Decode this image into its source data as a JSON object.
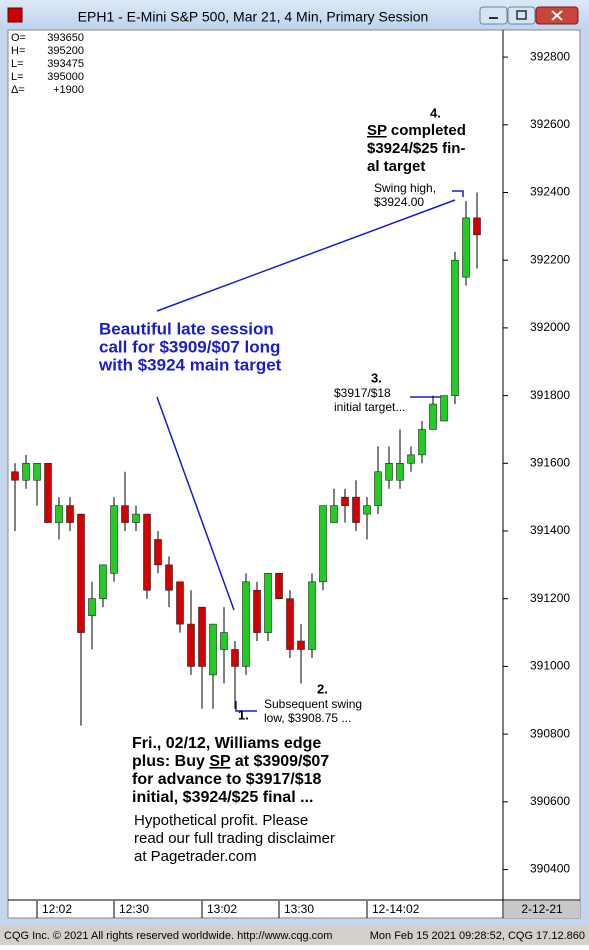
{
  "chart_data": {
    "type": "candlestick",
    "title": "EPH1 - E-Mini S&P 500, Mar 21, 4 Min, Primary Session",
    "info": [
      {
        "label": "O=",
        "value": "393650"
      },
      {
        "label": "H=",
        "value": "395200"
      },
      {
        "label": "L=",
        "value": "393475"
      },
      {
        "label": "L=",
        "value": "395000"
      },
      {
        "label": "Δ=",
        "value": "+1900"
      }
    ],
    "categories": [
      null,
      null,
      "12:02",
      null,
      null,
      null,
      null,
      null,
      null,
      "12:30",
      null,
      null,
      null,
      null,
      null,
      null,
      null,
      "13:02",
      null,
      null,
      null,
      null,
      null,
      null,
      "13:30",
      null,
      null,
      null,
      null,
      null,
      null,
      null,
      "12-14:02",
      null,
      null,
      null,
      null,
      null,
      null,
      null,
      null,
      null,
      null
    ],
    "open": [
      391575,
      391550,
      391550,
      391600,
      391425,
      391475,
      391450,
      391150,
      391200,
      391275,
      391475,
      391425,
      391450,
      391375,
      391300,
      391250,
      391125,
      391175,
      390975,
      391050,
      391050,
      391000,
      391225,
      391100,
      391275,
      391200,
      391075,
      391050,
      391250,
      391425,
      391500,
      391500,
      391450,
      391475,
      391550,
      391550,
      391600,
      391625,
      391700,
      391725,
      391800,
      392150,
      392325
    ],
    "high": [
      391600,
      391625,
      391600,
      391600,
      391500,
      391500,
      391450,
      391250,
      391300,
      391500,
      391575,
      391475,
      391450,
      391400,
      391325,
      391250,
      391225,
      391175,
      391125,
      391175,
      391075,
      391275,
      391250,
      391275,
      391275,
      391225,
      391125,
      391275,
      391475,
      391525,
      391525,
      391550,
      391500,
      391650,
      391650,
      391700,
      391650,
      391725,
      391800,
      391800,
      392225,
      392375,
      392400
    ],
    "low": [
      391400,
      391525,
      391475,
      391425,
      391375,
      391400,
      390825,
      391050,
      391175,
      391250,
      391400,
      391400,
      391200,
      391275,
      391175,
      391100,
      390975,
      390875,
      390875,
      390950,
      390875,
      390975,
      391075,
      391075,
      391200,
      391025,
      390950,
      391025,
      391225,
      391425,
      391425,
      391400,
      391375,
      391450,
      391525,
      391525,
      391575,
      391600,
      391700,
      391725,
      391775,
      392125,
      392175
    ],
    "close": [
      391550,
      391600,
      391600,
      391425,
      391475,
      391425,
      391100,
      391200,
      391300,
      391475,
      391425,
      391450,
      391225,
      391300,
      391225,
      391125,
      391000,
      391000,
      391125,
      391100,
      391000,
      391250,
      391100,
      391275,
      391200,
      391050,
      391050,
      391250,
      391475,
      391475,
      391475,
      391425,
      391475,
      391575,
      391600,
      391600,
      391625,
      391700,
      391775,
      391800,
      392200,
      392325,
      392275
    ],
    "up_color": "#22cc22",
    "down_color": "#d40000",
    "ylim": [
      390310,
      392880
    ],
    "yticks": [
      390400,
      390600,
      390800,
      391000,
      391200,
      391400,
      391600,
      391800,
      392000,
      392200,
      392400,
      392600,
      392800
    ],
    "grid": false,
    "date_label": "2-12-21",
    "annotations": {
      "high_note": {
        "number": "4.",
        "lines": [
          [
            {
              "text": "SP",
              "underline": true
            },
            {
              "text": " completed"
            }
          ],
          "$3924/$25 fin-",
          "al target"
        ]
      },
      "swing_high": {
        "lines": [
          "Swing high,",
          "$3924.00"
        ]
      },
      "call_note": {
        "lines": [
          "Beautiful late session",
          "call for $3909/$07 long",
          "with $3924 main target"
        ]
      },
      "initial_target": {
        "number": "3.",
        "lines": [
          "$3917/$18",
          "initial target..."
        ]
      },
      "swing_low": {
        "number": "2.",
        "lines": [
          "Subsequent swing",
          "low, $3908.75 ..."
        ]
      },
      "entry_note": {
        "number": "1.",
        "lines": [
          "Fri., 02/12, Williams edge",
          [
            {
              "text": "plus: Buy "
            },
            {
              "text": "SP",
              "underline": true
            },
            {
              "text": " at $3909/$07"
            }
          ],
          "for advance to $3917/$18",
          "initial, $3924/$25 final ..."
        ]
      },
      "disclaimer": {
        "lines": [
          "Hypothetical profit. Please",
          "read our full trading disclaimer",
          "at Pagetrader.com"
        ]
      }
    },
    "status_left": "CQG Inc. © 2021 All rights reserved worldwide. http://www.cqg.com",
    "status_right": "Mon Feb 15 2021 09:28:52, CQG 17.12.860"
  }
}
